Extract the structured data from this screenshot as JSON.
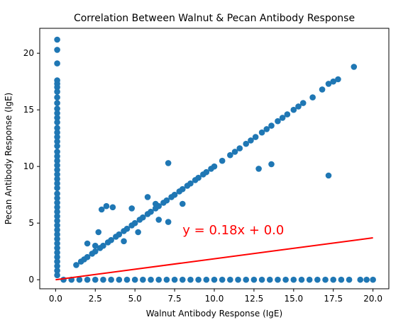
{
  "chart_data": {
    "type": "scatter",
    "title": "Correlation Between Walnut & Pecan Antibody Response",
    "xlabel": "Walnut Antibody Response (IgE)",
    "ylabel": "Pecan Antibody Response (IgE)",
    "xlim": [
      -1.0,
      21.0
    ],
    "ylim": [
      -0.8,
      22.2
    ],
    "xticks": [
      0.0,
      2.5,
      5.0,
      7.5,
      10.0,
      12.5,
      15.0,
      17.5,
      20.0
    ],
    "xtick_labels": [
      "0.0",
      "2.5",
      "5.0",
      "7.5",
      "10.0",
      "12.5",
      "15.0",
      "17.5",
      "20.0"
    ],
    "yticks": [
      0,
      5,
      10,
      15,
      20
    ],
    "ytick_labels": [
      "0",
      "5",
      "10",
      "15",
      "20"
    ],
    "grid": false,
    "point_color": "#1f77b4",
    "line_color": "#ff0000",
    "regression_line": {
      "x": [
        0,
        20
      ],
      "y": [
        0.0,
        3.7
      ]
    },
    "annotation": {
      "text": "y = 0.18x + 0.0",
      "x": 8.0,
      "y": 4.0,
      "color": "#ff0000"
    },
    "points": [
      [
        0.1,
        21.2
      ],
      [
        0.1,
        20.3
      ],
      [
        0.1,
        19.1
      ],
      [
        0.1,
        17.6
      ],
      [
        0.1,
        17.3
      ],
      [
        0.1,
        17.0
      ],
      [
        0.1,
        16.6
      ],
      [
        0.1,
        16.1
      ],
      [
        0.1,
        15.6
      ],
      [
        0.1,
        15.1
      ],
      [
        0.1,
        14.7
      ],
      [
        0.1,
        14.3
      ],
      [
        0.1,
        13.9
      ],
      [
        0.1,
        13.4
      ],
      [
        0.1,
        13.0
      ],
      [
        0.1,
        12.6
      ],
      [
        0.1,
        12.2
      ],
      [
        0.1,
        11.8
      ],
      [
        0.1,
        11.3
      ],
      [
        0.1,
        10.9
      ],
      [
        0.1,
        10.5
      ],
      [
        0.1,
        10.1
      ],
      [
        0.1,
        9.7
      ],
      [
        0.1,
        9.3
      ],
      [
        0.1,
        8.9
      ],
      [
        0.1,
        8.5
      ],
      [
        0.1,
        8.1
      ],
      [
        0.1,
        7.6
      ],
      [
        0.1,
        7.2
      ],
      [
        0.1,
        6.8
      ],
      [
        0.1,
        6.4
      ],
      [
        0.1,
        6.0
      ],
      [
        0.1,
        5.6
      ],
      [
        0.1,
        5.2
      ],
      [
        0.1,
        4.8
      ],
      [
        0.1,
        4.4
      ],
      [
        0.1,
        4.0
      ],
      [
        0.1,
        3.6
      ],
      [
        0.1,
        3.2
      ],
      [
        0.1,
        2.8
      ],
      [
        0.1,
        2.4
      ],
      [
        0.1,
        2.0
      ],
      [
        0.1,
        1.6
      ],
      [
        0.1,
        1.2
      ],
      [
        0.1,
        0.8
      ],
      [
        0.1,
        0.4
      ],
      [
        1.3,
        1.3
      ],
      [
        1.6,
        1.6
      ],
      [
        1.8,
        1.8
      ],
      [
        2.0,
        2.0
      ],
      [
        2.3,
        2.3
      ],
      [
        2.5,
        2.5
      ],
      [
        2.8,
        2.8
      ],
      [
        3.0,
        3.0
      ],
      [
        3.3,
        3.3
      ],
      [
        3.5,
        3.5
      ],
      [
        3.8,
        3.8
      ],
      [
        4.0,
        4.0
      ],
      [
        4.3,
        4.3
      ],
      [
        4.5,
        4.5
      ],
      [
        4.8,
        4.8
      ],
      [
        5.0,
        5.0
      ],
      [
        5.3,
        5.3
      ],
      [
        5.5,
        5.5
      ],
      [
        5.8,
        5.8
      ],
      [
        6.0,
        6.0
      ],
      [
        6.3,
        6.3
      ],
      [
        6.5,
        6.5
      ],
      [
        6.8,
        6.8
      ],
      [
        7.0,
        7.0
      ],
      [
        7.3,
        7.3
      ],
      [
        7.5,
        7.5
      ],
      [
        7.8,
        7.8
      ],
      [
        8.0,
        8.0
      ],
      [
        8.3,
        8.3
      ],
      [
        8.5,
        8.5
      ],
      [
        8.8,
        8.8
      ],
      [
        9.0,
        9.0
      ],
      [
        9.3,
        9.3
      ],
      [
        9.5,
        9.5
      ],
      [
        9.8,
        9.8
      ],
      [
        10.0,
        10.0
      ],
      [
        10.5,
        10.5
      ],
      [
        11.0,
        11.0
      ],
      [
        11.3,
        11.3
      ],
      [
        11.6,
        11.6
      ],
      [
        12.0,
        12.0
      ],
      [
        12.3,
        12.3
      ],
      [
        12.6,
        12.6
      ],
      [
        13.0,
        13.0
      ],
      [
        13.3,
        13.3
      ],
      [
        13.6,
        13.6
      ],
      [
        14.0,
        14.0
      ],
      [
        14.3,
        14.3
      ],
      [
        14.6,
        14.6
      ],
      [
        15.0,
        15.0
      ],
      [
        15.3,
        15.3
      ],
      [
        15.6,
        15.6
      ],
      [
        16.2,
        16.1
      ],
      [
        16.8,
        16.8
      ],
      [
        17.2,
        17.3
      ],
      [
        17.5,
        17.5
      ],
      [
        17.8,
        17.7
      ],
      [
        18.8,
        18.8
      ],
      [
        2.0,
        3.2
      ],
      [
        2.5,
        3.0
      ],
      [
        2.7,
        4.2
      ],
      [
        2.9,
        6.2
      ],
      [
        3.2,
        6.5
      ],
      [
        3.6,
        6.4
      ],
      [
        4.3,
        3.4
      ],
      [
        4.8,
        6.3
      ],
      [
        5.2,
        4.2
      ],
      [
        5.8,
        7.3
      ],
      [
        6.3,
        6.7
      ],
      [
        6.5,
        5.3
      ],
      [
        7.1,
        5.1
      ],
      [
        7.1,
        10.3
      ],
      [
        8.0,
        6.7
      ],
      [
        12.8,
        9.8
      ],
      [
        13.6,
        10.2
      ],
      [
        17.2,
        9.2
      ],
      [
        0.5,
        0.0
      ],
      [
        1.0,
        0.0
      ],
      [
        1.5,
        0.0
      ],
      [
        2.0,
        0.0
      ],
      [
        2.5,
        0.0
      ],
      [
        3.0,
        0.0
      ],
      [
        3.5,
        0.0
      ],
      [
        4.0,
        0.0
      ],
      [
        4.5,
        0.0
      ],
      [
        5.0,
        0.0
      ],
      [
        5.5,
        0.0
      ],
      [
        6.0,
        0.0
      ],
      [
        6.5,
        0.0
      ],
      [
        7.0,
        0.0
      ],
      [
        7.5,
        0.0
      ],
      [
        8.0,
        0.0
      ],
      [
        8.5,
        0.0
      ],
      [
        9.0,
        0.0
      ],
      [
        9.5,
        0.0
      ],
      [
        10.0,
        0.0
      ],
      [
        10.5,
        0.0
      ],
      [
        11.0,
        0.0
      ],
      [
        11.5,
        0.0
      ],
      [
        12.0,
        0.0
      ],
      [
        12.5,
        0.0
      ],
      [
        13.0,
        0.0
      ],
      [
        13.5,
        0.0
      ],
      [
        14.0,
        0.0
      ],
      [
        14.5,
        0.0
      ],
      [
        15.0,
        0.0
      ],
      [
        15.5,
        0.0
      ],
      [
        16.0,
        0.0
      ],
      [
        16.5,
        0.0
      ],
      [
        17.0,
        0.0
      ],
      [
        17.5,
        0.0
      ],
      [
        18.0,
        0.0
      ],
      [
        18.5,
        0.0
      ],
      [
        19.2,
        0.0
      ],
      [
        19.6,
        0.0
      ],
      [
        20.0,
        0.0
      ]
    ]
  }
}
